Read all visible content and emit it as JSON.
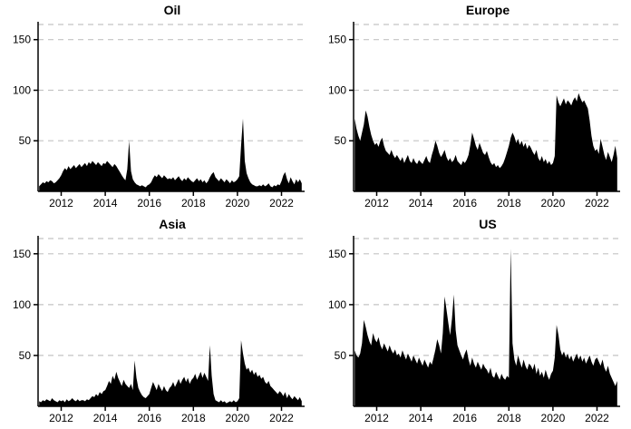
{
  "layout": {
    "background": "#ffffff",
    "grid_color": "#c4c4c4",
    "axis_color": "#000000"
  },
  "chart_data": [
    {
      "type": "area",
      "title": "Oil",
      "fill_color": "#000000",
      "grid": "dashed-horizontal",
      "x_start": 2011.0,
      "x_step": 0.083333,
      "xlim": [
        2010.95,
        2023.05
      ],
      "ylim": [
        0,
        165
      ],
      "x_ticks": [
        2012,
        2014,
        2016,
        2018,
        2020,
        2022
      ],
      "y_ticks": [
        50,
        100,
        150
      ],
      "values": [
        5,
        7,
        9,
        8,
        10,
        9,
        11,
        10,
        8,
        9,
        11,
        13,
        16,
        20,
        23,
        21,
        25,
        22,
        24,
        26,
        23,
        25,
        27,
        24,
        26,
        28,
        25,
        29,
        27,
        30,
        28,
        26,
        29,
        27,
        25,
        28,
        27,
        30,
        28,
        26,
        24,
        27,
        25,
        22,
        19,
        16,
        13,
        11,
        22,
        50,
        20,
        12,
        9,
        7,
        6,
        5,
        6,
        5,
        4,
        6,
        7,
        9,
        13,
        16,
        14,
        17,
        15,
        13,
        16,
        14,
        12,
        13,
        12,
        14,
        11,
        13,
        15,
        12,
        10,
        13,
        11,
        14,
        12,
        10,
        9,
        11,
        13,
        10,
        12,
        9,
        11,
        8,
        10,
        14,
        17,
        19,
        14,
        12,
        10,
        13,
        11,
        9,
        12,
        10,
        8,
        11,
        9,
        10,
        12,
        15,
        45,
        72,
        30,
        18,
        13,
        9,
        7,
        6,
        5,
        5,
        6,
        5,
        7,
        5,
        6,
        8,
        5,
        4,
        6,
        5,
        7,
        6,
        10,
        16,
        19,
        12,
        8,
        14,
        10,
        7,
        12,
        9,
        12,
        8
      ]
    },
    {
      "type": "area",
      "title": "Europe",
      "fill_color": "#000000",
      "grid": "dashed-horizontal",
      "x_start": 2011.0,
      "x_step": 0.083333,
      "xlim": [
        2010.95,
        2023.05
      ],
      "ylim": [
        0,
        165
      ],
      "x_ticks": [
        2012,
        2014,
        2016,
        2018,
        2020,
        2022
      ],
      "y_ticks": [
        50,
        100,
        150
      ],
      "values": [
        72,
        62,
        55,
        50,
        58,
        66,
        80,
        74,
        64,
        56,
        50,
        46,
        48,
        44,
        50,
        53,
        45,
        40,
        38,
        36,
        41,
        36,
        33,
        36,
        33,
        30,
        34,
        28,
        32,
        36,
        30,
        28,
        33,
        29,
        27,
        31,
        29,
        27,
        31,
        35,
        30,
        28,
        36,
        42,
        50,
        45,
        38,
        34,
        37,
        41,
        34,
        30,
        33,
        29,
        31,
        36,
        30,
        28,
        26,
        30,
        28,
        31,
        36,
        46,
        58,
        52,
        45,
        41,
        48,
        43,
        38,
        36,
        40,
        34,
        29,
        26,
        28,
        24,
        26,
        23,
        25,
        28,
        33,
        39,
        45,
        53,
        58,
        54,
        48,
        52,
        46,
        50,
        44,
        48,
        42,
        46,
        43,
        39,
        36,
        41,
        33,
        30,
        35,
        29,
        32,
        27,
        30,
        26,
        28,
        35,
        95,
        88,
        84,
        88,
        92,
        86,
        90,
        88,
        85,
        90,
        93,
        89,
        97,
        92,
        88,
        90,
        86,
        82,
        70,
        55,
        45,
        40,
        42,
        37,
        52,
        44,
        36,
        31,
        39,
        34,
        29,
        36,
        45,
        33
      ]
    },
    {
      "type": "area",
      "title": "Asia",
      "fill_color": "#000000",
      "grid": "dashed-horizontal",
      "x_start": 2011.0,
      "x_step": 0.083333,
      "xlim": [
        2010.95,
        2023.05
      ],
      "ylim": [
        0,
        165
      ],
      "x_ticks": [
        2012,
        2014,
        2016,
        2018,
        2020,
        2022
      ],
      "y_ticks": [
        50,
        100,
        150
      ],
      "values": [
        5,
        4,
        6,
        5,
        7,
        6,
        5,
        8,
        6,
        5,
        4,
        6,
        5,
        6,
        4,
        7,
        5,
        6,
        8,
        6,
        5,
        7,
        5,
        6,
        6,
        5,
        7,
        6,
        8,
        10,
        9,
        12,
        10,
        14,
        12,
        15,
        16,
        20,
        25,
        22,
        30,
        26,
        34,
        28,
        24,
        20,
        26,
        22,
        20,
        18,
        22,
        16,
        45,
        28,
        18,
        14,
        11,
        9,
        8,
        10,
        12,
        18,
        24,
        20,
        16,
        22,
        18,
        15,
        20,
        16,
        14,
        18,
        20,
        24,
        19,
        23,
        27,
        22,
        26,
        29,
        24,
        28,
        22,
        26,
        28,
        32,
        26,
        30,
        34,
        28,
        33,
        29,
        25,
        60,
        30,
        12,
        6,
        5,
        4,
        6,
        4,
        5,
        3,
        4,
        5,
        4,
        6,
        4,
        5,
        8,
        65,
        52,
        42,
        36,
        38,
        33,
        36,
        31,
        34,
        29,
        31,
        27,
        29,
        24,
        22,
        25,
        20,
        18,
        16,
        14,
        12,
        15,
        13,
        10,
        14,
        8,
        12,
        9,
        7,
        10,
        8,
        6,
        9,
        5
      ]
    },
    {
      "type": "area",
      "title": "US",
      "fill_color": "#000000",
      "grid": "dashed-horizontal",
      "x_start": 2011.0,
      "x_step": 0.083333,
      "xlim": [
        2010.95,
        2023.05
      ],
      "ylim": [
        0,
        165
      ],
      "x_ticks": [
        2012,
        2014,
        2016,
        2018,
        2020,
        2022
      ],
      "y_ticks": [
        50,
        100,
        150
      ],
      "values": [
        55,
        50,
        48,
        52,
        62,
        85,
        78,
        70,
        64,
        60,
        72,
        66,
        63,
        68,
        60,
        56,
        62,
        58,
        54,
        60,
        55,
        52,
        56,
        50,
        52,
        48,
        55,
        50,
        46,
        52,
        48,
        44,
        50,
        46,
        42,
        48,
        44,
        40,
        46,
        42,
        38,
        44,
        41,
        48,
        56,
        66,
        60,
        52,
        72,
        108,
        95,
        82,
        70,
        86,
        110,
        75,
        60,
        55,
        50,
        46,
        52,
        56,
        46,
        40,
        48,
        42,
        38,
        44,
        40,
        36,
        42,
        38,
        36,
        32,
        38,
        30,
        28,
        34,
        30,
        26,
        32,
        28,
        26,
        30,
        28,
        155,
        62,
        46,
        40,
        50,
        44,
        38,
        46,
        40,
        36,
        42,
        40,
        36,
        42,
        32,
        38,
        30,
        34,
        28,
        36,
        30,
        26,
        32,
        35,
        48,
        80,
        70,
        56,
        50,
        54,
        48,
        52,
        46,
        50,
        44,
        48,
        52,
        46,
        50,
        44,
        48,
        42,
        46,
        50,
        44,
        40,
        46,
        48,
        44,
        40,
        46,
        38,
        34,
        40,
        32,
        28,
        24,
        20,
        25
      ]
    }
  ]
}
